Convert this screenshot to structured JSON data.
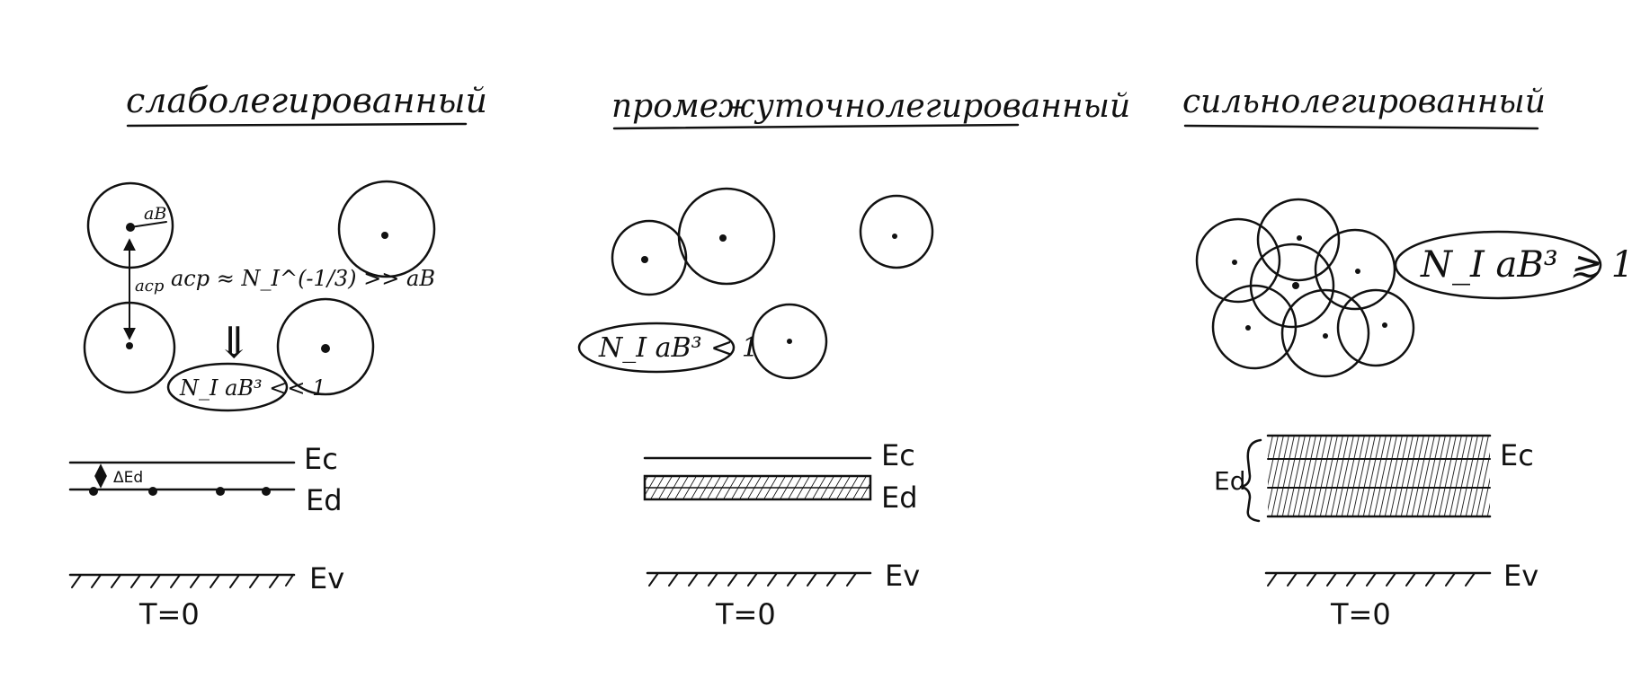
{
  "columns": [
    {
      "id": "weak",
      "title": "слаболегированный",
      "labels": {
        "ab": "aB",
        "acp": "aср",
        "relation": "aср ≈ N_I^(-1/3) >> aB",
        "condition": "N_I aB³ << 1",
        "implies": "⇓"
      }
    },
    {
      "id": "intermediate",
      "title": "промежуточнолегированный",
      "labels": {
        "condition": "N_I aB³ < 1"
      }
    },
    {
      "id": "strong",
      "title": "сильнолегированный",
      "labels": {
        "condition": "N_I aB³ ≳ 1"
      }
    }
  ],
  "bands": {
    "Ec": "Ec",
    "Ed": "Ed",
    "Ev": "Ev",
    "deltaEd": "ΔEd",
    "temperature": "T=0"
  },
  "icons": {
    "brace": "curly-brace-icon",
    "arrow": "double-arrow-icon"
  }
}
